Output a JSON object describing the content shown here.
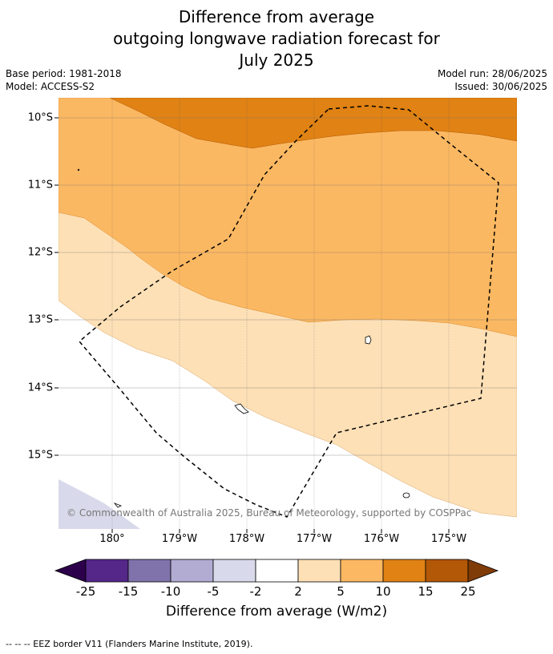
{
  "title": {
    "line1": "Difference from average",
    "line2": "outgoing longwave radiation forecast for",
    "line3": "July 2025"
  },
  "meta_left": {
    "base_period": "Base period: 1981-2018",
    "model": "Model: ACCESS-S2"
  },
  "meta_right": {
    "model_run": "Model run: 28/06/2025",
    "issued": "Issued: 30/06/2025"
  },
  "map": {
    "latitude_labels": [
      "10°S",
      "11°S",
      "12°S",
      "13°S",
      "14°S",
      "15°S"
    ],
    "longitude_labels": [
      "180°",
      "179°W",
      "178°W",
      "177°W",
      "176°W",
      "175°W"
    ],
    "copyright": "© Commonwealth of Australia 2025, Bureau of Meteorology, supported by COSPPac",
    "colors": {
      "cat_2_5": "#fde0b6",
      "cat_5_10": "#fbb862",
      "cat_10_15": "#e08214",
      "cat_neg5_neg2": "#d8daeb",
      "eez_border": "#000000"
    }
  },
  "colorbar": {
    "ticks": [
      "-25",
      "-15",
      "-10",
      "-5",
      "-2",
      "2",
      "5",
      "10",
      "15",
      "25"
    ],
    "colors": [
      "#2d004b",
      "#542788",
      "#8073ac",
      "#b2abd2",
      "#d8daeb",
      "#ffffff",
      "#fee0b6",
      "#fdb863",
      "#e08214",
      "#b35806",
      "#7f3b08"
    ],
    "title": "Difference from average (W/m2)"
  },
  "footnote": "--  --  -- EEZ border V11 (Flanders Marine Institute, 2019)."
}
